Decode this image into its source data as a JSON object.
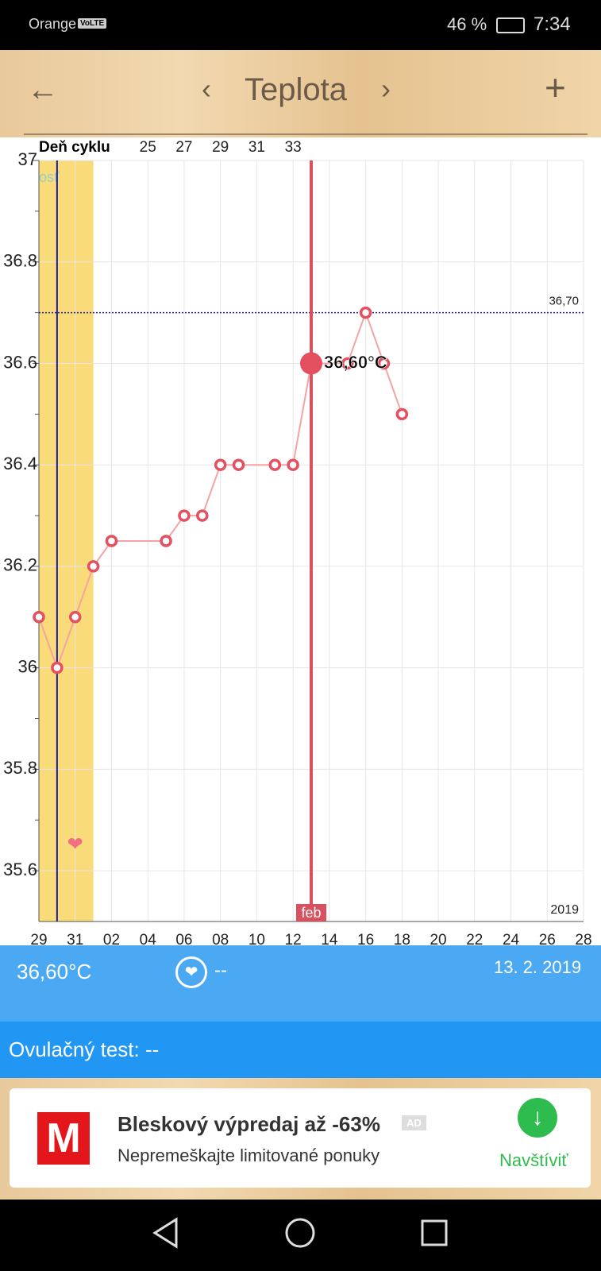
{
  "status_bar": {
    "carrier": "Orange",
    "volte": "VoLTE",
    "battery": "46 %",
    "time": "7:34"
  },
  "header": {
    "title": "Teplota"
  },
  "chart_data": {
    "type": "line",
    "x_axis_top_label": "Deň cyklu",
    "x": [
      0,
      1,
      2,
      3,
      4,
      7,
      8,
      9,
      10,
      11,
      13,
      14,
      15,
      17,
      18,
      19,
      20
    ],
    "values": [
      36.1,
      36.0,
      36.1,
      36.2,
      36.25,
      36.25,
      36.3,
      36.3,
      36.4,
      36.4,
      36.4,
      36.4,
      36.6,
      36.6,
      36.7,
      36.6,
      36.5
    ],
    "color": "#f5a3a3",
    "marker_color": "#e4505f",
    "xlim": [
      0,
      30
    ],
    "ylim": [
      35.5,
      37
    ],
    "xticks": [
      {
        "value": 0,
        "label": "29"
      },
      {
        "value": 2,
        "label": "31"
      },
      {
        "value": 4,
        "label": "02"
      },
      {
        "value": 6,
        "label": "04"
      },
      {
        "value": 8,
        "label": "06"
      },
      {
        "value": 10,
        "label": "08"
      },
      {
        "value": 12,
        "label": "10"
      },
      {
        "value": 14,
        "label": "12"
      },
      {
        "value": 16,
        "label": "14"
      },
      {
        "value": 18,
        "label": "16"
      },
      {
        "value": 20,
        "label": "18"
      },
      {
        "value": 22,
        "label": "20"
      },
      {
        "value": 24,
        "label": "22"
      },
      {
        "value": 26,
        "label": "24"
      },
      {
        "value": 28,
        "label": "26"
      },
      {
        "value": 30,
        "label": "28"
      }
    ],
    "cycle_ticks": [
      {
        "value": 6,
        "label": "25"
      },
      {
        "value": 8,
        "label": "27"
      },
      {
        "value": 10,
        "label": "29"
      },
      {
        "value": 12,
        "label": "31"
      },
      {
        "value": 14,
        "label": "33"
      }
    ],
    "yticks": [
      35.6,
      35.8,
      36,
      36.2,
      36.4,
      36.6,
      36.8,
      37
    ],
    "yminor": [
      35.7,
      35.9,
      36.1,
      36.3,
      36.5,
      36.7,
      36.9
    ],
    "grid": true,
    "reference_line": {
      "value": 36.7,
      "label": "36,70",
      "color": "#1a1aa0"
    },
    "selected": {
      "x": 15,
      "value": 36.6,
      "label": "36,60°C",
      "month": "feb",
      "color": "#d9505e"
    },
    "fertile_window": [
      0,
      3
    ],
    "fertile_color": "#fadb79",
    "ovulation_x": 1,
    "ovulation_color": "#1a1aa0",
    "year_label": "2019",
    "faded_label": "osť",
    "heart": {
      "x": 2,
      "value": 35.65
    }
  },
  "info_bar": {
    "temperature": "36,60°C",
    "intercourse": "--",
    "date": "13. 2. 2019"
  },
  "ovulation_test": {
    "label": "Ovulačný test: --"
  },
  "ad": {
    "logo": "M",
    "title": "Bleskový výpredaj až -63%",
    "badge": "AD",
    "subtitle": "Nepremeškajte limitované ponuky",
    "button": "Navštíviť"
  }
}
